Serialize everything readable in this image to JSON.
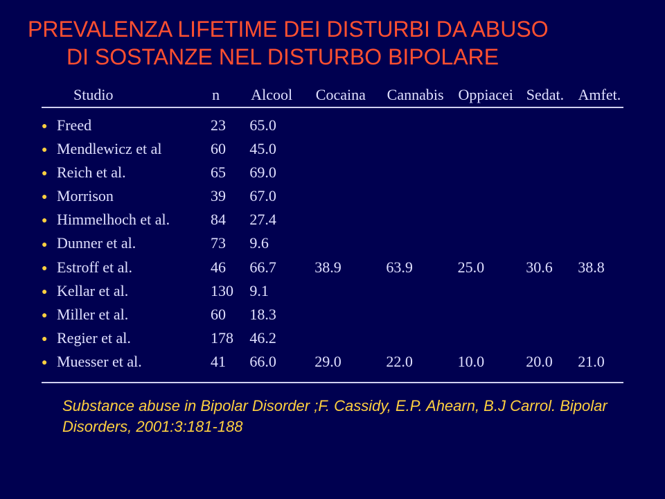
{
  "title_line1": "PREVALENZA LIFETIME DEI DISTURBI DA ABUSO",
  "title_line2": "DI SOSTANZE NEL DISTURBO BIPOLARE",
  "headers": {
    "study": "Studio",
    "n": "n",
    "alcool": "Alcool",
    "cocaina": "Cocaina",
    "cannabis": "Cannabis",
    "oppiacei": "Oppiacei",
    "sedat": "Sedat.",
    "amfet": "Amfet."
  },
  "rows": [
    {
      "study": "Freed",
      "n": "23",
      "alc": "65.0",
      "coc": "",
      "can": "",
      "opp": "",
      "sed": "",
      "amf": ""
    },
    {
      "study": "Mendlewicz et al",
      "n": "60",
      "alc": "45.0",
      "coc": "",
      "can": "",
      "opp": "",
      "sed": "",
      "amf": ""
    },
    {
      "study": "Reich et al.",
      "n": "65",
      "alc": "69.0",
      "coc": "",
      "can": "",
      "opp": "",
      "sed": "",
      "amf": ""
    },
    {
      "study": "Morrison",
      "n": "39",
      "alc": "67.0",
      "coc": "",
      "can": "",
      "opp": "",
      "sed": "",
      "amf": ""
    },
    {
      "study": "Himmelhoch et al.",
      "n": "84",
      "alc": "27.4",
      "coc": "",
      "can": "",
      "opp": "",
      "sed": "",
      "amf": ""
    },
    {
      "study": "Dunner et al.",
      "n": "73",
      "alc": "9.6",
      "coc": "",
      "can": "",
      "opp": "",
      "sed": "",
      "amf": ""
    },
    {
      "study": "Estroff et al.",
      "n": "46",
      "alc": "66.7",
      "coc": "38.9",
      "can": "63.9",
      "opp": "25.0",
      "sed": "30.6",
      "amf": "38.8"
    },
    {
      "study": "Kellar et al.",
      "n": "130",
      "alc": "9.1",
      "coc": "",
      "can": "",
      "opp": "",
      "sed": "",
      "amf": ""
    },
    {
      "study": "Miller et al.",
      "n": "60",
      "alc": "18.3",
      "coc": "",
      "can": "",
      "opp": "",
      "sed": "",
      "amf": ""
    },
    {
      "study": "Regier et al.",
      "n": "178",
      "alc": "46.2",
      "coc": "",
      "can": "",
      "opp": "",
      "sed": "",
      "amf": ""
    },
    {
      "study": "Muesser et al.",
      "n": "41",
      "alc": "66.0",
      "coc": "29.0",
      "can": "22.0",
      "opp": "10.0",
      "sed": "20.0",
      "amf": "21.0"
    }
  ],
  "citation": "Substance abuse in Bipolar Disorder ;F. Cassidy, E.P. Ahearn, B.J Carrol. Bipolar Disorders, 2001:3:181-188",
  "colors": {
    "background": "#000050",
    "title": "#ff5030",
    "text": "#e0e0ff",
    "bullet": "#ffd040",
    "citation": "#ffd040",
    "rule": "#d0d0f0"
  },
  "typography": {
    "title_font": "Verdana",
    "body_font": "Georgia",
    "title_size_pt": 32,
    "body_size_pt": 22,
    "citation_size_pt": 22,
    "citation_italic": true
  },
  "bullet_glyph": "●"
}
